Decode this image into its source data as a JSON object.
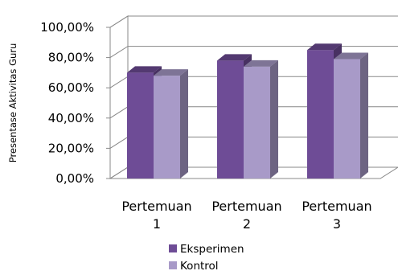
{
  "chart_data": {
    "type": "bar",
    "title": "",
    "xlabel": "",
    "ylabel": "Presentase Aktivitas Guru",
    "categories": [
      [
        "Pertemuan",
        "1"
      ],
      [
        "Pertemuan",
        "2"
      ],
      [
        "Pertemuan",
        "3"
      ]
    ],
    "series": [
      {
        "name": "Eksperimen",
        "values": [
          70,
          78,
          85
        ],
        "color": "#6e4c96"
      },
      {
        "name": "Kontrol",
        "values": [
          68,
          74,
          79
        ],
        "color": "#a89ac8"
      }
    ],
    "ylim": [
      0,
      100
    ],
    "yticks": [
      "0,00%",
      "20,00%",
      "40,00%",
      "60,00%",
      "80,00%",
      "100,00%"
    ],
    "grid": true,
    "legend_position": "bottom",
    "style": "3d-column"
  }
}
